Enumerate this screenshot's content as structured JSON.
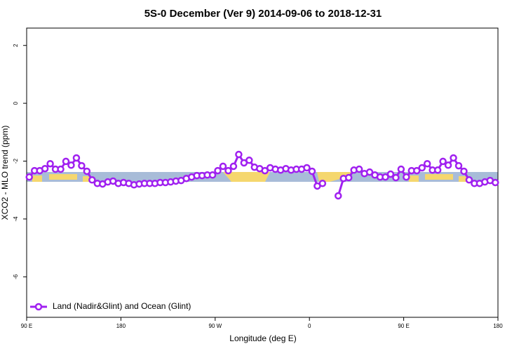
{
  "chart_data": {
    "type": "line",
    "title": "5S-0 December (Ver 9)   2014-09-06 to 2018-12-31",
    "xlabel": "Longitude (deg E)",
    "ylabel": "XCO2 - MLO trend (ppm)",
    "xlim": [
      90,
      540
    ],
    "ylim": [
      -7.4,
      2.6
    ],
    "xticks": [
      {
        "value": 90,
        "label": "90 E"
      },
      180,
      {
        "value": 270,
        "label": "90 W"
      },
      {
        "value": 360,
        "label": "0"
      },
      {
        "value": 450,
        "label": "90 E"
      },
      {
        "value": 540,
        "label": "180"
      }
    ],
    "yticks": [
      2,
      0,
      -2,
      -4,
      -6
    ],
    "legend": "bottom-left",
    "x": [
      92.5,
      97.5,
      102.5,
      107.5,
      112.5,
      117.5,
      122.5,
      127.5,
      132.5,
      137.5,
      142.5,
      147.5,
      152.5,
      157.5,
      162.5,
      167.5,
      172.5,
      177.5,
      182.5,
      187.5,
      192.5,
      197.5,
      202.5,
      207.5,
      212.5,
      217.5,
      222.5,
      227.5,
      232.5,
      237.5,
      242.5,
      247.5,
      252.5,
      257.5,
      262.5,
      267.5,
      272.5,
      277.5,
      282.5,
      287.5,
      292.5,
      297.5,
      302.5,
      307.5,
      312.5,
      317.5,
      322.5,
      327.5,
      332.5,
      337.5,
      342.5,
      347.5,
      352.5,
      357.5,
      362.5,
      367.5,
      372.5,
      377.5,
      382.5,
      387.5,
      392.5,
      397.5,
      402.5,
      407.5,
      412.5,
      417.5,
      422.5,
      427.5,
      432.5,
      437.5,
      442.5,
      447.5,
      452.5,
      457.5,
      462.5,
      467.5,
      472.5,
      477.5,
      482.5,
      487.5,
      492.5,
      497.5,
      502.5,
      507.5,
      512.5,
      517.5,
      522.5,
      527.5,
      532.5,
      537.5
    ],
    "series": [
      {
        "name": "Land (Nadir&Glint) and Ocean (Glint)",
        "color": "#a020f0",
        "values": [
          -2.55,
          -2.33,
          -2.33,
          -2.26,
          -2.09,
          -2.28,
          -2.28,
          -2.01,
          -2.14,
          -1.89,
          -2.16,
          -2.35,
          -2.65,
          -2.77,
          -2.79,
          -2.72,
          -2.69,
          -2.77,
          -2.74,
          -2.77,
          -2.82,
          -2.79,
          -2.77,
          -2.77,
          -2.77,
          -2.74,
          -2.74,
          -2.72,
          -2.69,
          -2.67,
          -2.6,
          -2.55,
          -2.5,
          -2.5,
          -2.48,
          -2.48,
          -2.33,
          -2.18,
          -2.33,
          -2.18,
          -1.77,
          -2.06,
          -1.97,
          -2.21,
          -2.26,
          -2.33,
          -2.23,
          -2.28,
          -2.31,
          -2.26,
          -2.31,
          -2.28,
          -2.28,
          -2.23,
          -2.35,
          -2.86,
          -2.77,
          null,
          null,
          -3.2,
          -2.6,
          -2.57,
          -2.31,
          -2.28,
          -2.43,
          -2.38,
          -2.48,
          -2.55,
          -2.55,
          -2.45,
          -2.57,
          -2.28,
          -2.55,
          -2.33,
          -2.33,
          -2.23,
          -2.09,
          -2.31,
          -2.31,
          -2.01,
          -2.14,
          -1.89,
          -2.16,
          -2.35,
          -2.65,
          -2.77,
          -2.77,
          -2.72,
          -2.67,
          -2.74
        ]
      }
    ]
  }
}
